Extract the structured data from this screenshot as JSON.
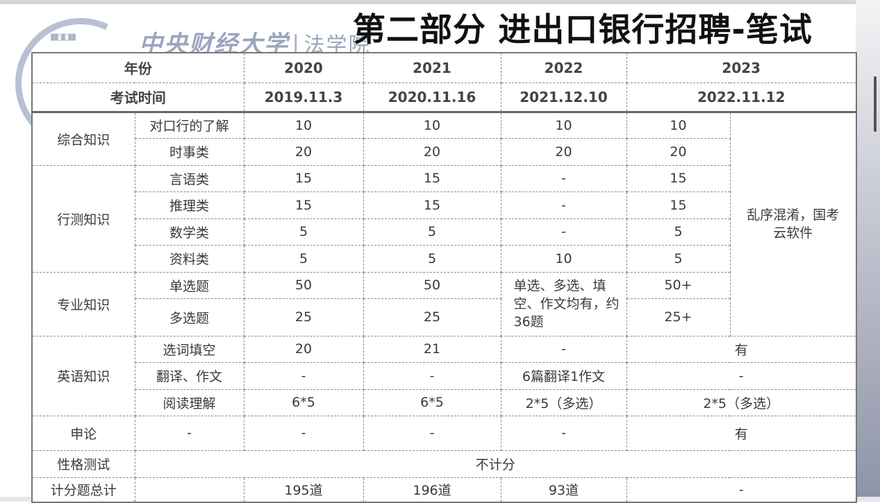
{
  "logo": {
    "university": "中央财经大学",
    "department": "法学院"
  },
  "title": "第二部分 进出口银行招聘-笔试",
  "header": {
    "year_label": "年份",
    "years": [
      "2020",
      "2021",
      "2022",
      "2023"
    ],
    "date_label": "考试时间",
    "dates": [
      "2019.11.3",
      "2020.11.16",
      "2021.12.10",
      "2022.11.12"
    ]
  },
  "sections": {
    "general": {
      "label": "综合知识",
      "rows": [
        {
          "item": "对口行的了解",
          "v": [
            "10",
            "10",
            "10",
            "10"
          ]
        },
        {
          "item": "时事类",
          "v": [
            "20",
            "20",
            "20",
            "20"
          ]
        }
      ]
    },
    "aptitude": {
      "label": "行测知识",
      "rows": [
        {
          "item": "言语类",
          "v": [
            "15",
            "15",
            "-",
            "15"
          ]
        },
        {
          "item": "推理类",
          "v": [
            "15",
            "15",
            "-",
            "15"
          ]
        },
        {
          "item": "数学类",
          "v": [
            "5",
            "5",
            "-",
            "5"
          ]
        },
        {
          "item": "资料类",
          "v": [
            "5",
            "5",
            "10",
            "5"
          ]
        }
      ]
    },
    "professional": {
      "label": "专业知识",
      "rows": [
        {
          "item": "单选题",
          "v": [
            "50",
            "50",
            "50+"
          ]
        },
        {
          "item": "多选题",
          "v": [
            "25",
            "25",
            "25+"
          ]
        }
      ],
      "merged_2022": "单选、多选、填空、作文均有，约36题"
    },
    "note_2023": "乱序混淆，国考云软件",
    "english": {
      "label": "英语知识",
      "rows": [
        {
          "item": "选词填空",
          "v": [
            "20",
            "21",
            "-",
            "有"
          ]
        },
        {
          "item": "翻译、作文",
          "v": [
            "-",
            "-",
            "6篇翻译1作文",
            "-"
          ]
        },
        {
          "item": "阅读理解",
          "v": [
            "6*5",
            "6*5",
            "2*5（多选）",
            "2*5（多选）"
          ]
        }
      ]
    },
    "essay": {
      "label": "申论",
      "v": [
        "-",
        "-",
        "-",
        "-",
        "有"
      ]
    },
    "personality": {
      "label": "性格测试",
      "value": "不计分"
    },
    "total": {
      "label": "计分题总计",
      "v": [
        "",
        "195道",
        "196道",
        "93道",
        "-"
      ]
    }
  }
}
